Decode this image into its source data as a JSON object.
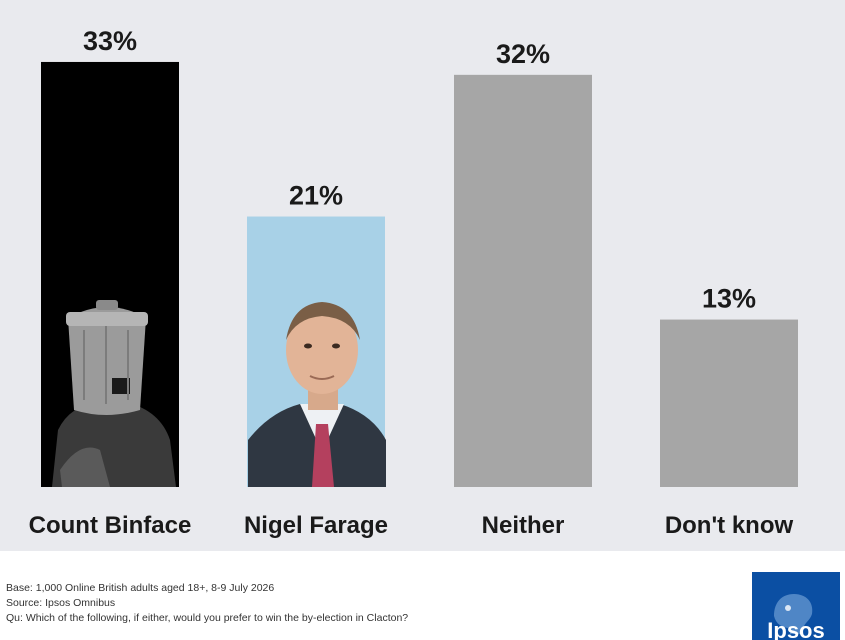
{
  "chart_data": {
    "type": "bar",
    "categories": [
      "Count Binface",
      "Nigel Farage",
      "Neither",
      "Don't know"
    ],
    "values": [
      33,
      21,
      32,
      13
    ],
    "value_labels": [
      "33%",
      "21%",
      "32%",
      "13%"
    ],
    "unit": "%",
    "ylim": [
      0,
      35
    ],
    "title": "",
    "xlabel": "",
    "ylabel": "",
    "grid": false,
    "legend": "none",
    "bar_colors": [
      "#000000",
      "#a8d1e7",
      "#a6a6a6",
      "#a6a6a6"
    ]
  },
  "colors": {
    "chart_background": "#e9eaee",
    "label_text": "#1a1a1a",
    "footnote_text": "#333333",
    "brand_blue": "#0b4fa3"
  },
  "footnotes": {
    "base": "Base: 1,000 Online British adults aged 18+, 8-9 July 2026",
    "source": "Source: Ipsos Omnibus",
    "question": "Qu: Which of the following, if either, would you prefer to win the by-election in Clacton?"
  },
  "logo": {
    "text": "Ipsos",
    "icon": "ipsos-logo"
  },
  "images": {
    "bar_1": "count-binface-photo",
    "bar_2": "nigel-farage-photo"
  }
}
